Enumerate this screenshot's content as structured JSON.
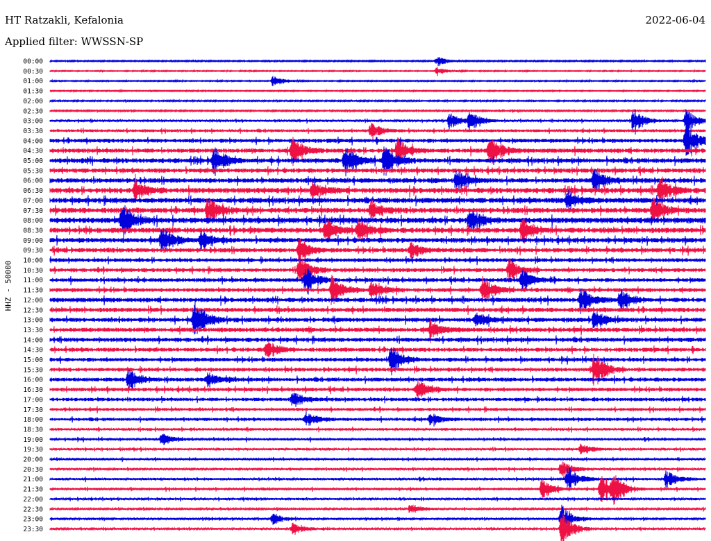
{
  "header": {
    "station": "HT Ratzakli, Kefalonia",
    "filter": "Applied filter: WWSSN-SP",
    "date": "2022-06-04",
    "channel": "HHZ - 50000"
  },
  "chart_data": {
    "type": "line",
    "title": "HT Ratzakli, Kefalonia",
    "subtitle": "Applied filter: WWSSN-SP",
    "ylabel": "HHZ - 50000",
    "rows": [
      "00:00",
      "00:30",
      "01:00",
      "01:30",
      "02:00",
      "02:30",
      "03:00",
      "03:30",
      "04:00",
      "04:30",
      "05:00",
      "05:30",
      "06:00",
      "06:30",
      "07:00",
      "07:30",
      "08:00",
      "08:30",
      "09:00",
      "09:30",
      "10:00",
      "10:30",
      "11:00",
      "11:30",
      "12:00",
      "12:30",
      "13:00",
      "13:30",
      "14:00",
      "14:30",
      "15:00",
      "15:30",
      "16:00",
      "16:30",
      "17:00",
      "17:30",
      "18:00",
      "18:30",
      "19:00",
      "19:30",
      "20:00",
      "20:30",
      "21:00",
      "21:30",
      "22:00",
      "22:30",
      "23:00",
      "23:30"
    ],
    "row_colors": [
      "#0000dd",
      "#ee1144"
    ],
    "noise_level": [
      0.6,
      0.5,
      0.5,
      0.5,
      0.6,
      0.7,
      1.0,
      1.3,
      1.8,
      2.0,
      2.2,
      2.0,
      2.2,
      2.4,
      2.4,
      2.4,
      2.6,
      2.4,
      2.2,
      2.0,
      1.8,
      1.8,
      1.8,
      1.8,
      2.0,
      2.0,
      2.0,
      2.0,
      2.0,
      1.8,
      1.8,
      1.7,
      1.8,
      1.7,
      1.6,
      1.4,
      1.4,
      1.2,
      1.1,
      1.1,
      1.0,
      1.0,
      1.1,
      1.1,
      1.0,
      0.9,
      0.9,
      0.9
    ],
    "events": [
      {
        "row": 0,
        "t": 0.59,
        "amp": 5
      },
      {
        "row": 1,
        "t": 0.59,
        "amp": 4
      },
      {
        "row": 2,
        "t": 0.34,
        "amp": 6
      },
      {
        "row": 6,
        "t": 0.61,
        "amp": 9
      },
      {
        "row": 6,
        "t": 0.64,
        "amp": 10
      },
      {
        "row": 6,
        "t": 0.89,
        "amp": 12
      },
      {
        "row": 6,
        "t": 0.97,
        "amp": 12
      },
      {
        "row": 7,
        "t": 0.49,
        "amp": 8
      },
      {
        "row": 8,
        "t": 0.97,
        "amp": 18
      },
      {
        "row": 9,
        "t": 0.37,
        "amp": 16
      },
      {
        "row": 9,
        "t": 0.53,
        "amp": 14
      },
      {
        "row": 9,
        "t": 0.67,
        "amp": 18
      },
      {
        "row": 10,
        "t": 0.25,
        "amp": 14
      },
      {
        "row": 10,
        "t": 0.45,
        "amp": 18
      },
      {
        "row": 10,
        "t": 0.51,
        "amp": 16
      },
      {
        "row": 12,
        "t": 0.62,
        "amp": 10
      },
      {
        "row": 12,
        "t": 0.83,
        "amp": 12
      },
      {
        "row": 13,
        "t": 0.13,
        "amp": 12
      },
      {
        "row": 13,
        "t": 0.4,
        "amp": 8
      },
      {
        "row": 13,
        "t": 0.93,
        "amp": 14
      },
      {
        "row": 14,
        "t": 0.79,
        "amp": 10
      },
      {
        "row": 15,
        "t": 0.24,
        "amp": 14
      },
      {
        "row": 15,
        "t": 0.49,
        "amp": 10
      },
      {
        "row": 15,
        "t": 0.92,
        "amp": 14
      },
      {
        "row": 16,
        "t": 0.11,
        "amp": 18
      },
      {
        "row": 16,
        "t": 0.64,
        "amp": 12
      },
      {
        "row": 17,
        "t": 0.42,
        "amp": 12
      },
      {
        "row": 17,
        "t": 0.47,
        "amp": 12
      },
      {
        "row": 17,
        "t": 0.72,
        "amp": 14
      },
      {
        "row": 18,
        "t": 0.17,
        "amp": 14
      },
      {
        "row": 18,
        "t": 0.23,
        "amp": 10
      },
      {
        "row": 19,
        "t": 0.38,
        "amp": 12
      },
      {
        "row": 19,
        "t": 0.55,
        "amp": 8
      },
      {
        "row": 21,
        "t": 0.38,
        "amp": 16
      },
      {
        "row": 21,
        "t": 0.7,
        "amp": 12
      },
      {
        "row": 22,
        "t": 0.39,
        "amp": 14
      },
      {
        "row": 22,
        "t": 0.72,
        "amp": 10
      },
      {
        "row": 23,
        "t": 0.43,
        "amp": 16
      },
      {
        "row": 23,
        "t": 0.49,
        "amp": 10
      },
      {
        "row": 23,
        "t": 0.66,
        "amp": 14
      },
      {
        "row": 24,
        "t": 0.81,
        "amp": 14
      },
      {
        "row": 24,
        "t": 0.87,
        "amp": 12
      },
      {
        "row": 26,
        "t": 0.22,
        "amp": 24
      },
      {
        "row": 26,
        "t": 0.65,
        "amp": 8
      },
      {
        "row": 26,
        "t": 0.83,
        "amp": 10
      },
      {
        "row": 27,
        "t": 0.58,
        "amp": 10
      },
      {
        "row": 29,
        "t": 0.33,
        "amp": 10
      },
      {
        "row": 30,
        "t": 0.52,
        "amp": 16
      },
      {
        "row": 31,
        "t": 0.83,
        "amp": 20
      },
      {
        "row": 32,
        "t": 0.12,
        "amp": 12
      },
      {
        "row": 32,
        "t": 0.24,
        "amp": 8
      },
      {
        "row": 33,
        "t": 0.56,
        "amp": 12
      },
      {
        "row": 34,
        "t": 0.37,
        "amp": 8
      },
      {
        "row": 36,
        "t": 0.39,
        "amp": 8
      },
      {
        "row": 36,
        "t": 0.58,
        "amp": 6
      },
      {
        "row": 38,
        "t": 0.17,
        "amp": 6
      },
      {
        "row": 39,
        "t": 0.81,
        "amp": 6
      },
      {
        "row": 41,
        "t": 0.78,
        "amp": 10
      },
      {
        "row": 42,
        "t": 0.79,
        "amp": 14
      },
      {
        "row": 42,
        "t": 0.94,
        "amp": 10
      },
      {
        "row": 43,
        "t": 0.75,
        "amp": 10
      },
      {
        "row": 43,
        "t": 0.84,
        "amp": 18
      },
      {
        "row": 43,
        "t": 0.86,
        "amp": 14
      },
      {
        "row": 45,
        "t": 0.55,
        "amp": 6
      },
      {
        "row": 46,
        "t": 0.34,
        "amp": 6
      },
      {
        "row": 46,
        "t": 0.78,
        "amp": 16
      },
      {
        "row": 47,
        "t": 0.37,
        "amp": 6
      },
      {
        "row": 47,
        "t": 0.78,
        "amp": 20
      }
    ],
    "grid": false,
    "legend": "none"
  }
}
